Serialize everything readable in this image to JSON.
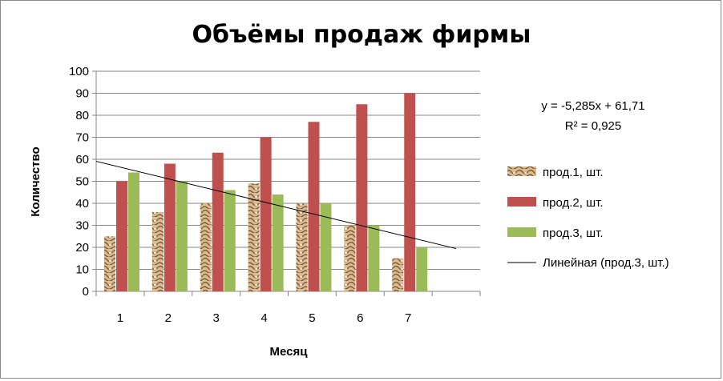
{
  "chart_data": {
    "type": "bar",
    "title": "Объёмы продаж фирмы",
    "xlabel": "Месяц",
    "ylabel": "Количество",
    "categories": [
      "1",
      "2",
      "3",
      "4",
      "5",
      "6",
      "7"
    ],
    "ylim": [
      0,
      100
    ],
    "yticks": [
      0,
      10,
      20,
      30,
      40,
      50,
      60,
      70,
      80,
      90,
      100
    ],
    "grid": true,
    "legend_position": "right",
    "series": [
      {
        "name": "прод.1, шт.",
        "values": [
          25,
          36,
          40,
          49,
          40,
          30,
          15
        ],
        "color": "#c8a87f",
        "pattern": "texture"
      },
      {
        "name": "прод.2, шт.",
        "values": [
          50,
          58,
          63,
          70,
          77,
          85,
          90
        ],
        "color": "#c0504d"
      },
      {
        "name": "прод.3, шт.",
        "values": [
          54,
          50,
          46,
          44,
          40,
          30,
          20
        ],
        "color": "#9bbb59"
      }
    ],
    "trendline": {
      "name": "Линейная (прод.3, шт.)",
      "of_series": "прод.3, шт.",
      "type": "linear",
      "slope": -5.285,
      "intercept": 61.71,
      "x_range": [
        0.5,
        8
      ],
      "color": "#000000",
      "equation": "y = -5,285x + 61,71",
      "r_squared": "R² = 0,925"
    }
  }
}
